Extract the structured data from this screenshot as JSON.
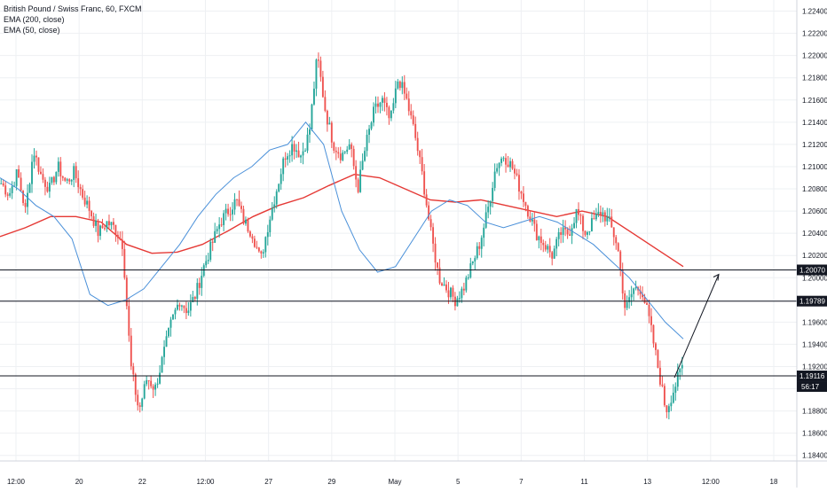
{
  "legend": {
    "title": "British Pound / Swiss Franc, 60, FXCM",
    "ema200": "EMA (200, close)",
    "ema50": "EMA (50, close)"
  },
  "colors": {
    "up": "#26a69a",
    "down": "#ef5350",
    "ema200": "#e53935",
    "ema50": "#4a90d9",
    "grid": "#eef0f3",
    "level": "#131722"
  },
  "chart_data": {
    "type": "candlestick",
    "symbol": "GBPCHF",
    "timeframe": "60",
    "grid": true,
    "ylim": [
      1.1835,
      1.225
    ],
    "y_ticks": [
      "1.18400",
      "1.18600",
      "1.18800",
      "1.19000",
      "1.19200",
      "1.19400",
      "1.19600",
      "1.19800",
      "1.20000",
      "1.20200",
      "1.20400",
      "1.20600",
      "1.20800",
      "1.21000",
      "1.21200",
      "1.21400",
      "1.21600",
      "1.21800",
      "1.22000",
      "1.22200",
      "1.22400"
    ],
    "x_ticks": [
      "12:00",
      "20",
      "22",
      "12:00",
      "27",
      "29",
      "May",
      "5",
      "7",
      "11",
      "13",
      "12:00",
      "18"
    ],
    "horizontal_levels": [
      {
        "value": 1.2007,
        "label": "1.20070"
      },
      {
        "value": 1.19789,
        "label": "1.19789"
      },
      {
        "value": 1.19116,
        "label": "1.19116",
        "countdown": "56:17",
        "current": true
      }
    ],
    "price_path": [
      1.2085,
      1.2075,
      1.2095,
      1.206,
      1.2115,
      1.209,
      1.208,
      1.21,
      1.2085,
      1.2095,
      1.2075,
      1.206,
      1.204,
      1.205,
      1.2045,
      1.203,
      1.192,
      1.188,
      1.191,
      1.19,
      1.193,
      1.196,
      1.198,
      1.197,
      1.1985,
      1.201,
      1.203,
      1.205,
      1.206,
      1.207,
      1.205,
      1.204,
      1.2015,
      1.205,
      1.208,
      1.211,
      1.212,
      1.211,
      1.213,
      1.22,
      1.215,
      1.212,
      1.211,
      1.212,
      1.208,
      1.212,
      1.215,
      1.216,
      1.214,
      1.218,
      1.216,
      1.213,
      1.209,
      1.204,
      1.2,
      1.199,
      1.198,
      1.199,
      1.201,
      1.203,
      1.206,
      1.21,
      1.211,
      1.21,
      1.208,
      1.206,
      1.204,
      1.203,
      1.202,
      1.204,
      1.204,
      1.206,
      1.204,
      1.205,
      1.206,
      1.205,
      1.203,
      1.197,
      1.199,
      1.199,
      1.196,
      1.192,
      1.188,
      1.19,
      1.192
    ],
    "ema50_path": [
      1.209,
      1.208,
      1.2065,
      1.2055,
      1.2035,
      1.1985,
      1.1975,
      1.198,
      1.199,
      1.201,
      1.203,
      1.2055,
      1.2075,
      1.209,
      1.21,
      1.2115,
      1.212,
      1.214,
      1.212,
      1.206,
      1.2025,
      1.2005,
      1.201,
      1.2035,
      1.206,
      1.207,
      1.2065,
      1.205,
      1.2045,
      1.205,
      1.2055,
      1.205,
      1.204,
      1.203,
      1.2015,
      1.2,
      1.198,
      1.196,
      1.1945
    ],
    "ema200_path": [
      1.2037,
      1.2045,
      1.2055,
      1.2055,
      1.205,
      1.203,
      1.2022,
      1.2023,
      1.203,
      1.2042,
      1.2055,
      1.2065,
      1.2072,
      1.2083,
      1.2093,
      1.209,
      1.208,
      1.207,
      1.2068,
      1.207,
      1.2065,
      1.206,
      1.2055,
      1.206,
      1.2055,
      1.204,
      1.2025,
      1.201
    ],
    "projection": {
      "from": 1.191,
      "to": 1.2003
    }
  }
}
